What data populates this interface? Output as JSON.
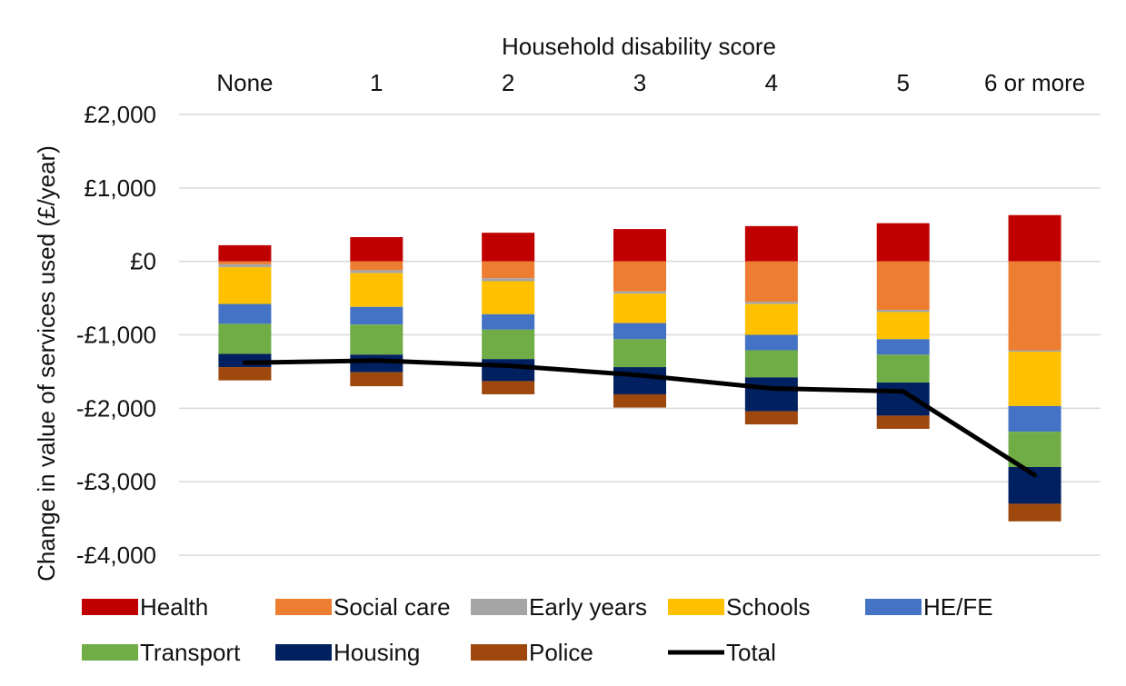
{
  "chart_data": {
    "type": "bar",
    "stacked": true,
    "title": "",
    "x_axis_title": "Household disability score",
    "xlabel": "Household disability score",
    "ylabel": "Change in value of services used (£/year)",
    "categories": [
      "None",
      "1",
      "2",
      "3",
      "4",
      "5",
      "6 or more"
    ],
    "ylim": [
      -4000,
      2000
    ],
    "yticks": [
      2000,
      1000,
      0,
      -1000,
      -2000,
      -3000,
      -4000
    ],
    "ytick_labels": [
      "£2,000",
      "£1,000",
      "£0",
      "-£1,000",
      "-£2,000",
      "-£3,000",
      "-£4,000"
    ],
    "grid": true,
    "legend_position": "bottom",
    "series": [
      {
        "name": "Health",
        "color": "#C00000",
        "values": [
          220,
          330,
          390,
          440,
          480,
          520,
          630
        ]
      },
      {
        "name": "Social care",
        "color": "#ED7D31",
        "values": [
          -40,
          -120,
          -230,
          -410,
          -550,
          -660,
          -1210
        ]
      },
      {
        "name": "Early years",
        "color": "#A5A5A5",
        "values": [
          -40,
          -40,
          -40,
          -30,
          -30,
          -30,
          -20
        ]
      },
      {
        "name": "Schools",
        "color": "#FFC000",
        "values": [
          -500,
          -460,
          -450,
          -400,
          -420,
          -370,
          -740
        ]
      },
      {
        "name": "HE/FE",
        "color": "#4472C4",
        "values": [
          -270,
          -240,
          -210,
          -220,
          -210,
          -210,
          -350
        ]
      },
      {
        "name": "Transport",
        "color": "#70AD47",
        "values": [
          -410,
          -410,
          -400,
          -380,
          -370,
          -380,
          -480
        ]
      },
      {
        "name": "Housing",
        "color": "#002060",
        "values": [
          -180,
          -240,
          -300,
          -370,
          -460,
          -450,
          -500
        ]
      },
      {
        "name": "Police",
        "color": "#9E480E",
        "values": [
          -180,
          -190,
          -180,
          -180,
          -180,
          -180,
          -240
        ]
      }
    ],
    "total": {
      "name": "Total",
      "color": "#000000",
      "values": [
        -1380,
        -1350,
        -1420,
        -1550,
        -1730,
        -1770,
        -2910
      ]
    }
  }
}
